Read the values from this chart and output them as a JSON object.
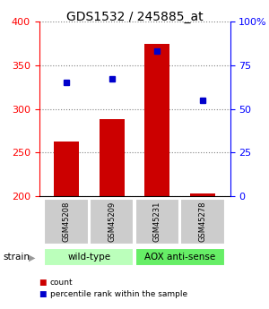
{
  "title": "GDS1532 / 245885_at",
  "samples": [
    "GSM45208",
    "GSM45209",
    "GSM45231",
    "GSM45278"
  ],
  "bar_values": [
    263,
    288,
    375,
    203
  ],
  "percentile_values": [
    65,
    67,
    83,
    55
  ],
  "ylim_left": [
    200,
    400
  ],
  "ylim_right": [
    0,
    100
  ],
  "yticks_left": [
    200,
    250,
    300,
    350,
    400
  ],
  "yticks_right": [
    0,
    25,
    50,
    75,
    100
  ],
  "bar_color": "#cc0000",
  "dot_color": "#0000cc",
  "group_labels": [
    "wild-type",
    "AOX anti-sense"
  ],
  "group_colors": [
    "#bbffbb",
    "#66ee66"
  ],
  "strain_label": "strain",
  "legend_items": [
    {
      "label": "count",
      "color": "#cc0000"
    },
    {
      "label": "percentile rank within the sample",
      "color": "#0000cc"
    }
  ],
  "bar_width": 0.55,
  "sample_box_color": "#cccccc",
  "spine_color_left": "red",
  "spine_color_right": "blue"
}
